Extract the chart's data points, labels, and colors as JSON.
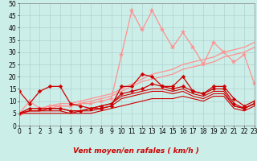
{
  "title": "",
  "xlabel": "Vent moyen/en rafales ( km/h )",
  "ylabel": "",
  "bg_color": "#cceee8",
  "grid_color": "#aacccc",
  "xlim": [
    0,
    23
  ],
  "ylim": [
    0,
    50
  ],
  "yticks": [
    0,
    5,
    10,
    15,
    20,
    25,
    30,
    35,
    40,
    45,
    50
  ],
  "xticks": [
    0,
    1,
    2,
    3,
    4,
    5,
    6,
    7,
    8,
    9,
    10,
    11,
    12,
    13,
    14,
    15,
    16,
    17,
    18,
    19,
    20,
    21,
    22,
    23
  ],
  "series": [
    {
      "x": [
        0,
        1,
        2,
        3,
        4,
        5,
        6,
        7,
        8,
        9,
        10,
        11,
        12,
        13,
        14,
        15,
        16,
        17,
        18,
        19,
        20,
        21,
        22,
        23
      ],
      "y": [
        5,
        10,
        7,
        8,
        8,
        8,
        9,
        9,
        10,
        11,
        29,
        47,
        39,
        47,
        39,
        32,
        38,
        32,
        25,
        34,
        30,
        26,
        29,
        17
      ],
      "color": "#ff9090",
      "lw": 0.9,
      "marker": "*",
      "ms": 4
    },
    {
      "x": [
        0,
        1,
        2,
        3,
        4,
        5,
        6,
        7,
        8,
        9,
        10,
        11,
        12,
        13,
        14,
        15,
        16,
        17,
        18,
        19,
        20,
        21,
        22,
        23
      ],
      "y": [
        5,
        7,
        7,
        8,
        9,
        9,
        10,
        11,
        12,
        13,
        15,
        17,
        19,
        21,
        22,
        23,
        25,
        26,
        27,
        28,
        30,
        31,
        32,
        34
      ],
      "color": "#ff9090",
      "lw": 0.9,
      "marker": null,
      "ms": 0
    },
    {
      "x": [
        0,
        1,
        2,
        3,
        4,
        5,
        6,
        7,
        8,
        9,
        10,
        11,
        12,
        13,
        14,
        15,
        16,
        17,
        18,
        19,
        20,
        21,
        22,
        23
      ],
      "y": [
        4,
        6,
        6,
        7,
        8,
        8,
        9,
        10,
        11,
        12,
        14,
        16,
        18,
        19,
        20,
        21,
        23,
        24,
        25,
        26,
        28,
        29,
        30,
        32
      ],
      "color": "#ff9090",
      "lw": 0.9,
      "marker": null,
      "ms": 0
    },
    {
      "x": [
        0,
        1,
        2,
        3,
        4,
        5,
        6,
        7,
        8,
        9,
        10,
        11,
        12,
        13,
        14,
        15,
        16,
        17,
        18,
        19,
        20,
        21,
        22,
        23
      ],
      "y": [
        14,
        9,
        14,
        16,
        16,
        9,
        8,
        7,
        7,
        8,
        16,
        16,
        21,
        20,
        16,
        16,
        20,
        14,
        13,
        16,
        16,
        11,
        8,
        10
      ],
      "color": "#cc0000",
      "lw": 0.9,
      "marker": "D",
      "ms": 2.5
    },
    {
      "x": [
        0,
        1,
        2,
        3,
        4,
        5,
        6,
        7,
        8,
        9,
        10,
        11,
        12,
        13,
        14,
        15,
        16,
        17,
        18,
        19,
        20,
        21,
        22,
        23
      ],
      "y": [
        5,
        7,
        7,
        7,
        7,
        6,
        6,
        7,
        8,
        9,
        13,
        14,
        15,
        17,
        16,
        15,
        16,
        14,
        13,
        15,
        15,
        9,
        7,
        9
      ],
      "color": "#cc0000",
      "lw": 0.9,
      "marker": "D",
      "ms": 2.5
    },
    {
      "x": [
        0,
        1,
        2,
        3,
        4,
        5,
        6,
        7,
        8,
        9,
        10,
        11,
        12,
        13,
        14,
        15,
        16,
        17,
        18,
        19,
        20,
        21,
        22,
        23
      ],
      "y": [
        5,
        6,
        6,
        7,
        7,
        6,
        6,
        7,
        8,
        9,
        12,
        13,
        14,
        15,
        15,
        14,
        15,
        13,
        12,
        14,
        14,
        8,
        7,
        9
      ],
      "color": "#cc0000",
      "lw": 0.8,
      "marker": null,
      "ms": 0
    },
    {
      "x": [
        0,
        1,
        2,
        3,
        4,
        5,
        6,
        7,
        8,
        9,
        10,
        11,
        12,
        13,
        14,
        15,
        16,
        17,
        18,
        19,
        20,
        21,
        22,
        23
      ],
      "y": [
        5,
        6,
        6,
        6,
        6,
        5,
        6,
        6,
        7,
        8,
        11,
        12,
        13,
        14,
        14,
        13,
        14,
        12,
        11,
        13,
        13,
        8,
        7,
        9
      ],
      "color": "#cc0000",
      "lw": 0.8,
      "marker": null,
      "ms": 0
    },
    {
      "x": [
        0,
        1,
        2,
        3,
        4,
        5,
        6,
        7,
        8,
        9,
        10,
        11,
        12,
        13,
        14,
        15,
        16,
        17,
        18,
        19,
        20,
        21,
        22,
        23
      ],
      "y": [
        5,
        5,
        5,
        5,
        5,
        5,
        5,
        5,
        6,
        7,
        8,
        9,
        10,
        11,
        11,
        11,
        12,
        11,
        10,
        12,
        12,
        7,
        6,
        8
      ],
      "color": "#cc0000",
      "lw": 0.8,
      "marker": null,
      "ms": 0
    }
  ],
  "arrow_color": "#cc0000",
  "xlabel_color": "#cc0000",
  "xlabel_fontsize": 6.5,
  "tick_fontsize": 5.5
}
